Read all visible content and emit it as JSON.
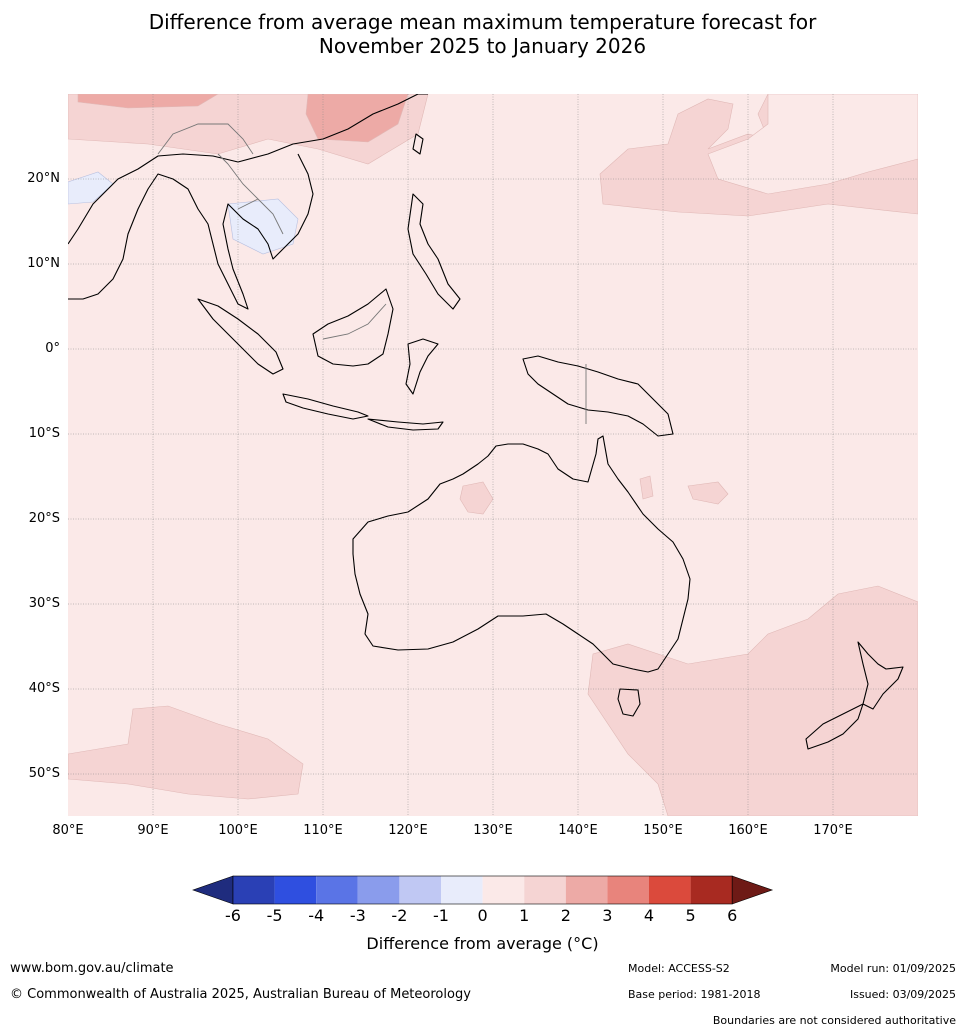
{
  "title_line1": "Difference from average mean maximum temperature forecast for",
  "title_line2": "November 2025 to January 2026",
  "map": {
    "lat_labels": [
      "20°N",
      "10°N",
      "0°",
      "10°S",
      "20°S",
      "30°S",
      "40°S",
      "50°S"
    ],
    "lon_labels": [
      "80°E",
      "90°E",
      "100°E",
      "110°E",
      "120°E",
      "130°E",
      "140°E",
      "150°E",
      "160°E",
      "170°E"
    ],
    "lat_values": [
      20,
      10,
      0,
      -10,
      -20,
      -30,
      -40,
      -50
    ],
    "lon_values": [
      80,
      90,
      100,
      110,
      120,
      130,
      140,
      150,
      160,
      170
    ],
    "lon_range": [
      80,
      180
    ],
    "lat_range": [
      -55,
      30
    ],
    "base_color": "#fbe9e8"
  },
  "colorbar": {
    "ticks": [
      "-6",
      "-5",
      "-4",
      "-3",
      "-2",
      "-1",
      "0",
      "1",
      "2",
      "3",
      "4",
      "5",
      "6"
    ],
    "colors": [
      "#1f2c7e",
      "#2a40b5",
      "#2f4fe0",
      "#5a74e6",
      "#8a9cec",
      "#c0c8f3",
      "#e8ecfb",
      "#fbe9e8",
      "#f5d4d3",
      "#edaaa6",
      "#e8847c",
      "#db4a3c",
      "#a82a21",
      "#6e1a16"
    ],
    "label": "Difference from average ($^\\circ$C)",
    "label_display": "Difference from average (°C)"
  },
  "footer": {
    "website": "www.bom.gov.au/climate",
    "copyright": "© Commonwealth of Australia 2025, Australian Bureau of Meteorology",
    "model": "Model: ACCESS-S2",
    "base_period": "Base period: 1981-2018",
    "model_run": "Model run: 01/09/2025",
    "issued": "Issued: 03/09/2025",
    "disclaimer": "Boundaries are not considered authoritative"
  }
}
